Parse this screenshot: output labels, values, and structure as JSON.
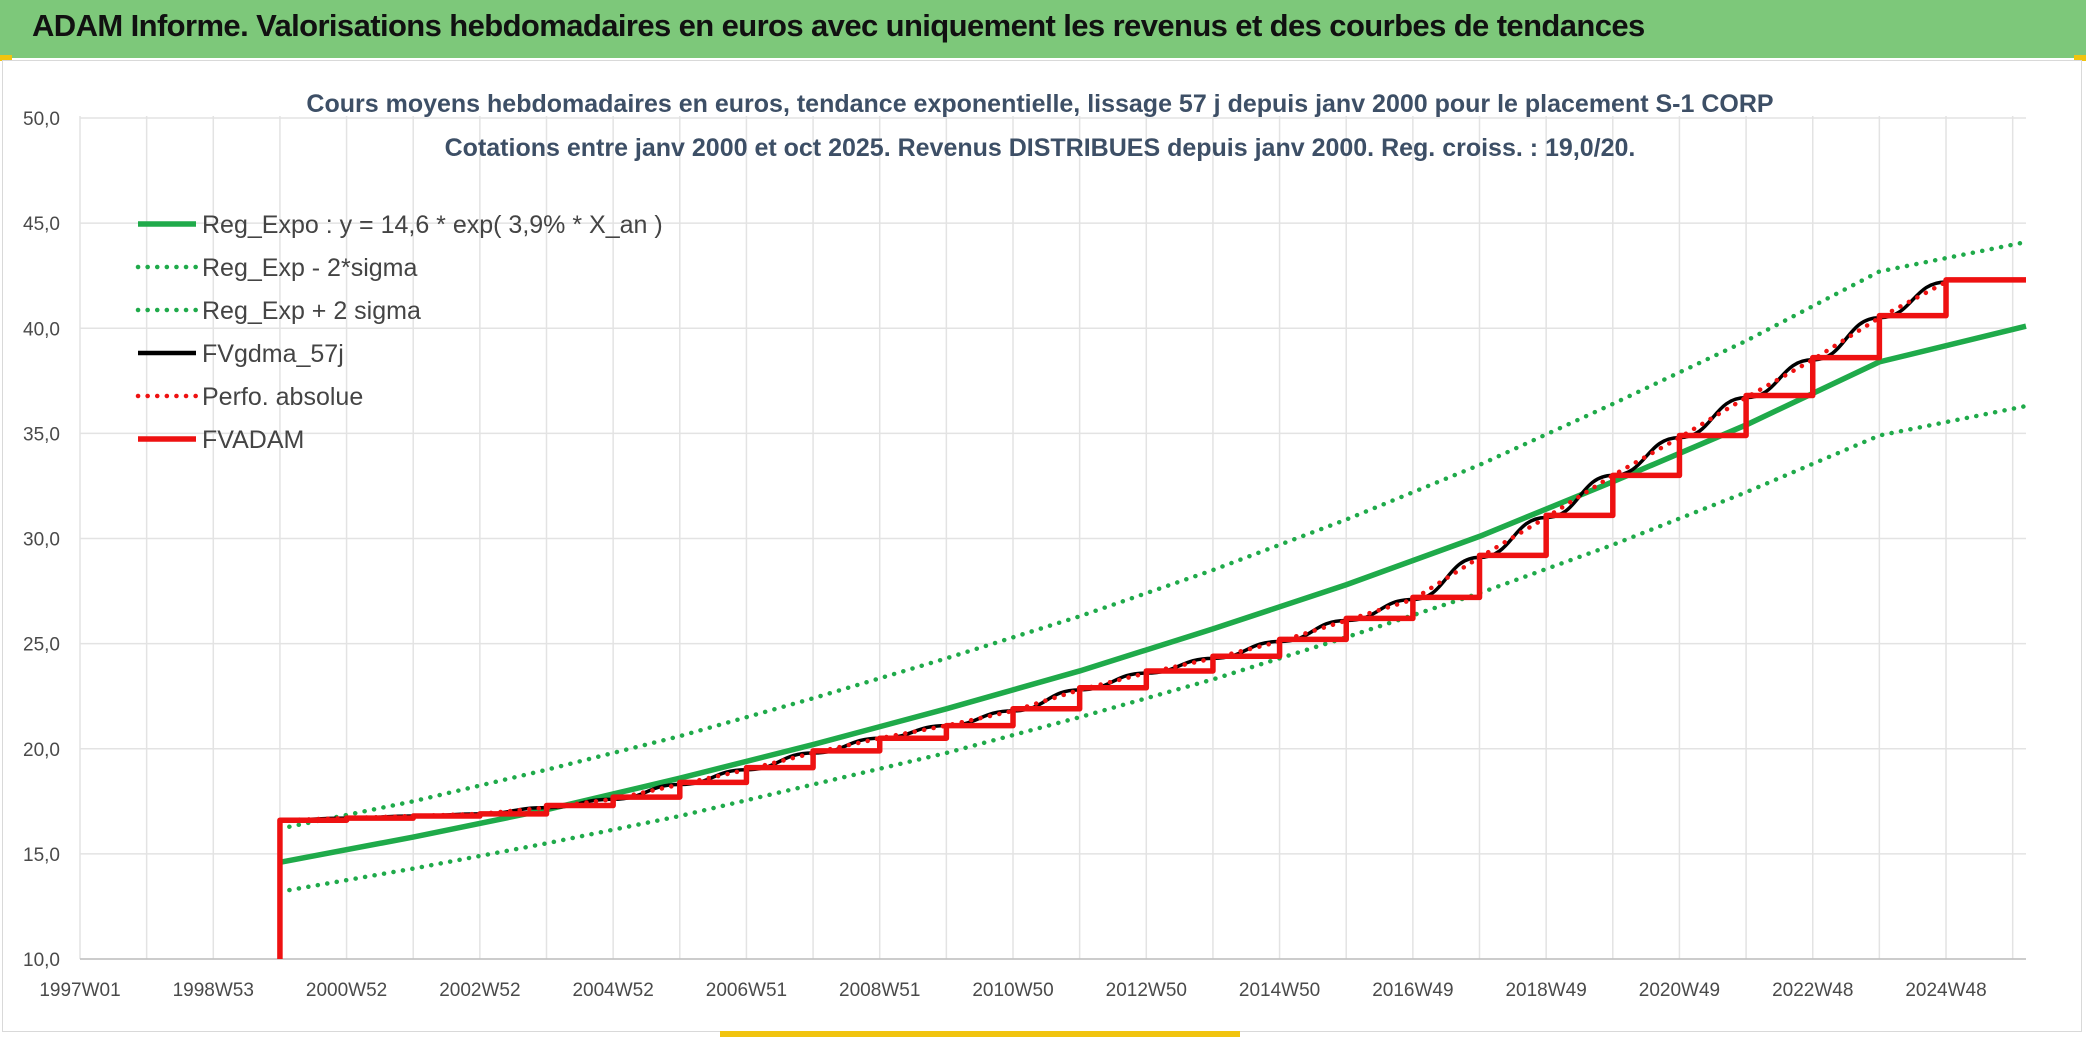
{
  "header": {
    "title": "ADAM Informe. Valorisations hebdomadaires en euros avec uniquement les revenus et des courbes de tendances"
  },
  "colors": {
    "banner": "#7dc87a",
    "green": "#1faa4a",
    "red": "#ee1111",
    "black": "#000000",
    "grid": "#e3e3e3"
  },
  "chart_data": {
    "type": "line",
    "title": "Cours moyens hebdomadaires en euros, tendance exponentielle, lissage 57 j depuis janv 2000 pour le placement S-1 CORP",
    "subtitle": "Cotations entre janv 2000 et oct 2025. Revenus DISTRIBUES depuis janv 2000. Reg. croiss. : 19,0/20.",
    "x_tick_labels": [
      "1997W01",
      "1998W53",
      "2000W52",
      "2002W52",
      "2004W52",
      "2006W51",
      "2008W51",
      "2010W50",
      "2012W50",
      "2014W50",
      "2016W49",
      "2018W49",
      "2020W49",
      "2022W48",
      "2024W48"
    ],
    "x_tick_years": [
      1997.0,
      1999.0,
      2001.0,
      2003.0,
      2005.0,
      2007.0,
      2009.0,
      2011.0,
      2013.0,
      2015.0,
      2017.0,
      2019.0,
      2021.0,
      2023.0,
      2025.0
    ],
    "y_tick_labels": [
      "10,0",
      "15,0",
      "20,0",
      "25,0",
      "30,0",
      "35,0",
      "40,0",
      "45,0",
      "50,0"
    ],
    "ylim": [
      10,
      50
    ],
    "xlim": [
      1997.0,
      2026.2
    ],
    "legend_position": "top-left",
    "grid": true,
    "series": [
      {
        "name": "Reg_Expo : y = 14,6 * exp( 3,9% *  X_an )",
        "style": "solid",
        "color": "#1faa4a",
        "x": [
          2000.0,
          2002.0,
          2004.0,
          2006.0,
          2008.0,
          2010.0,
          2012.0,
          2014.0,
          2016.0,
          2018.0,
          2020.0,
          2022.0,
          2024.0,
          2026.2
        ],
        "values": [
          14.6,
          15.8,
          17.1,
          18.6,
          20.2,
          21.9,
          23.7,
          25.7,
          27.8,
          30.1,
          32.7,
          35.4,
          38.4,
          40.1
        ]
      },
      {
        "name": "Reg_Exp - 2*sigma",
        "style": "dotted",
        "color": "#1faa4a",
        "x": [
          2000.0,
          2002.0,
          2004.0,
          2006.0,
          2008.0,
          2010.0,
          2012.0,
          2014.0,
          2016.0,
          2018.0,
          2020.0,
          2022.0,
          2024.0,
          2026.2
        ],
        "values": [
          13.2,
          14.3,
          15.5,
          16.8,
          18.3,
          19.8,
          21.5,
          23.3,
          25.3,
          27.4,
          29.7,
          32.2,
          34.9,
          36.3
        ]
      },
      {
        "name": "Reg_Exp + 2 sigma",
        "style": "dotted",
        "color": "#1faa4a",
        "x": [
          2000.0,
          2002.0,
          2004.0,
          2006.0,
          2008.0,
          2010.0,
          2012.0,
          2014.0,
          2016.0,
          2018.0,
          2020.0,
          2022.0,
          2024.0,
          2026.2
        ],
        "values": [
          16.2,
          17.5,
          19.0,
          20.6,
          22.4,
          24.3,
          26.3,
          28.5,
          30.9,
          33.5,
          36.4,
          39.4,
          42.7,
          44.1
        ]
      },
      {
        "name": "FVgdma_57j",
        "style": "solid",
        "color": "#000000",
        "x": [
          2000.0,
          2001.0,
          2002.0,
          2003.0,
          2004.0,
          2005.0,
          2006.0,
          2007.0,
          2008.0,
          2009.0,
          2010.0,
          2011.0,
          2012.0,
          2013.0,
          2014.0,
          2015.0,
          2016.0,
          2017.0,
          2018.0,
          2019.0,
          2020.0,
          2021.0,
          2022.0,
          2023.0,
          2024.0,
          2025.0
        ],
        "values": [
          16.6,
          16.7,
          16.8,
          16.9,
          17.2,
          17.6,
          18.3,
          19.0,
          19.8,
          20.5,
          21.1,
          21.8,
          22.8,
          23.6,
          24.3,
          25.1,
          26.1,
          27.1,
          29.1,
          31.0,
          33.0,
          34.8,
          36.7,
          38.5,
          40.5,
          42.2
        ]
      },
      {
        "name": "Perfo. absolue",
        "style": "dotted",
        "color": "#ee1111",
        "x": [
          2000.0,
          2001.0,
          2002.0,
          2003.0,
          2004.0,
          2005.0,
          2006.0,
          2007.0,
          2008.0,
          2009.0,
          2010.0,
          2011.0,
          2012.0,
          2013.0,
          2014.0,
          2015.0,
          2016.0,
          2017.0,
          2018.0,
          2019.0,
          2020.0,
          2021.0,
          2022.0,
          2023.0,
          2024.0,
          2025.0
        ],
        "values": [
          16.6,
          16.7,
          16.8,
          16.9,
          17.2,
          17.6,
          18.3,
          19.0,
          19.8,
          20.5,
          21.1,
          21.8,
          22.8,
          23.6,
          24.3,
          25.1,
          26.1,
          27.1,
          29.1,
          31.0,
          33.0,
          34.8,
          36.7,
          38.5,
          40.5,
          42.2
        ]
      },
      {
        "name": "FVADAM",
        "style": "step",
        "color": "#ee1111",
        "x": [
          2000.0,
          2000.0,
          2001.0,
          2002.0,
          2003.0,
          2004.0,
          2005.0,
          2006.0,
          2007.0,
          2008.0,
          2009.0,
          2010.0,
          2011.0,
          2012.0,
          2013.0,
          2014.0,
          2015.0,
          2016.0,
          2017.0,
          2018.0,
          2019.0,
          2020.0,
          2021.0,
          2022.0,
          2023.0,
          2024.0,
          2025.0,
          2026.2
        ],
        "values": [
          10.0,
          16.6,
          16.7,
          16.8,
          16.9,
          17.3,
          17.7,
          18.4,
          19.1,
          19.9,
          20.5,
          21.1,
          21.9,
          22.9,
          23.7,
          24.4,
          25.2,
          26.2,
          27.2,
          29.2,
          31.1,
          33.0,
          34.9,
          36.8,
          38.6,
          40.6,
          42.3,
          42.3
        ]
      }
    ]
  }
}
